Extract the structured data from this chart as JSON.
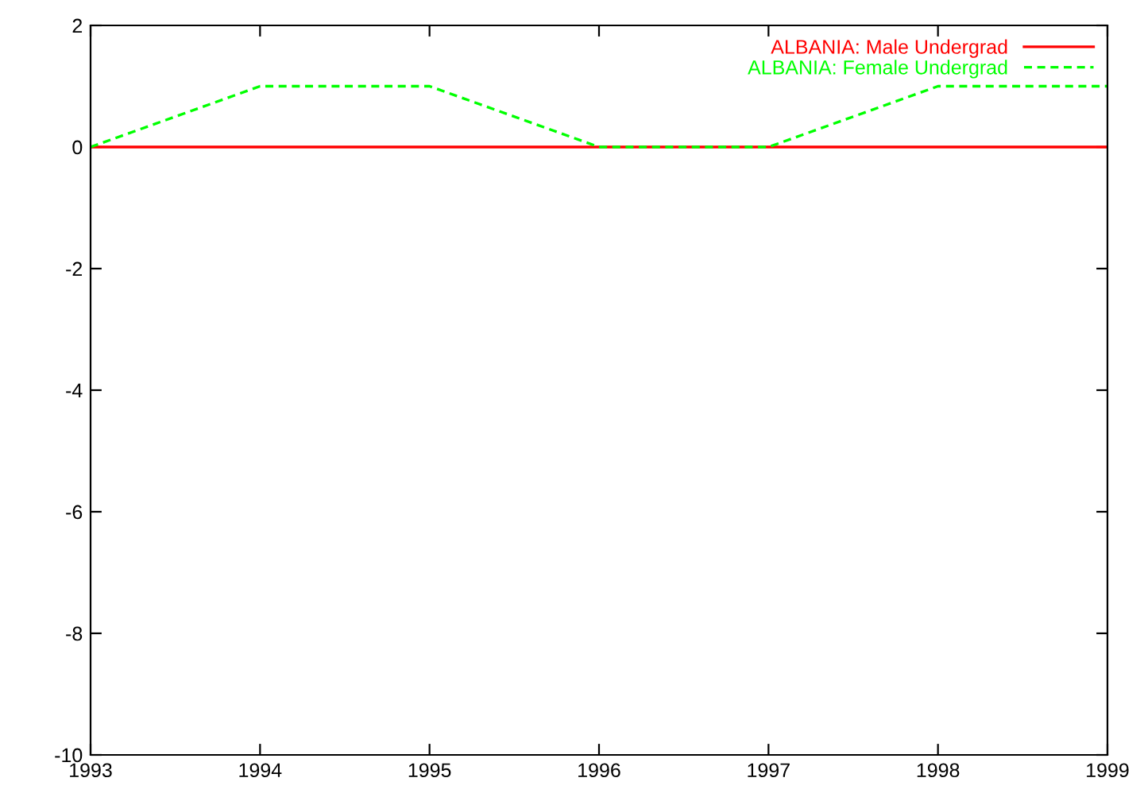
{
  "chart_data": {
    "type": "line",
    "x": [
      1993,
      1994,
      1995,
      1996,
      1997,
      1998,
      1999
    ],
    "series": [
      {
        "name": "ALBANIA: Male Undergrad",
        "color": "#ff0000",
        "line_style": "solid",
        "values": [
          0,
          0,
          0,
          0,
          0,
          0,
          0
        ]
      },
      {
        "name": "ALBANIA: Female Undergrad",
        "color": "#00ff00",
        "line_style": "dashed",
        "values": [
          0,
          1,
          1,
          0,
          0,
          1,
          1
        ]
      }
    ],
    "xlim": [
      1993,
      1999
    ],
    "xticks": [
      1993,
      1994,
      1995,
      1996,
      1997,
      1998,
      1999
    ],
    "ylim": [
      -10,
      2
    ],
    "yticks": [
      -10,
      -8,
      -6,
      -4,
      -2,
      0,
      2
    ],
    "grid": false,
    "legend": "top right"
  }
}
